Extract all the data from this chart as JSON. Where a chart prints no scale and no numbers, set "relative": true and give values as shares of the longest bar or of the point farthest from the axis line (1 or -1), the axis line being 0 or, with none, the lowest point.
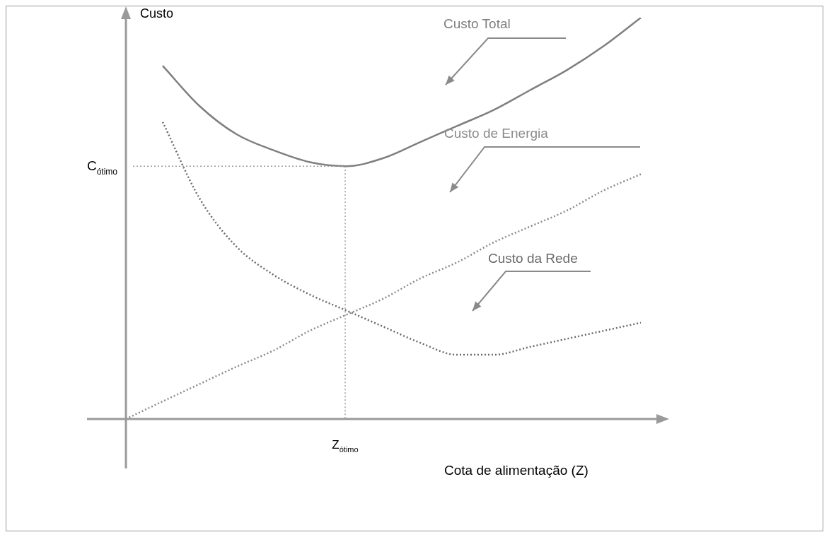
{
  "chart_data": {
    "type": "line",
    "relative": true,
    "xlabel": "Cota de alimentação (Z)",
    "ylabel": "Custo",
    "grid": false,
    "legend": false,
    "marker": "none",
    "categories": [
      null,
      null,
      null,
      null,
      null,
      null,
      null,
      null,
      null,
      null,
      null,
      null,
      null,
      null,
      null
    ],
    "annotations": [
      "Z$_{ótimo}$"
    ],
    "series": [
      {
        "name": "Custo Total",
        "color": "#7f7f7f",
        "line_style": "solid",
        "values": [
          null,
          0.88,
          0.78,
          0.71,
          0.67,
          0.64,
          0.63,
          0.65,
          0.69,
          0.73,
          0.77,
          0.82,
          0.87,
          0.93,
          1
        ]
      },
      {
        "name": "Custo de Energia",
        "color": "#8a8a8a",
        "line_style": "dotted",
        "values": [
          0,
          0.044,
          0.087,
          0.13,
          0.17,
          0.22,
          0.26,
          0.3,
          0.35,
          0.39,
          0.44,
          0.48,
          0.52,
          0.57,
          0.61
        ]
      },
      {
        "name": "Custo da Rede",
        "color": "#6a6a6a",
        "line_style": "dotted",
        "values": [
          null,
          0.74,
          0.55,
          0.43,
          0.36,
          0.31,
          0.27,
          0.23,
          0.19,
          0.16,
          0.16,
          0.18,
          0.2,
          0.22,
          0.24
        ]
      }
    ],
    "ref_lines": [
      {
        "axis": "y",
        "value": 0.63,
        "label": "C$_{ótimo}$",
        "line_style": "dotted",
        "color": "#9a9a9a"
      }
    ]
  }
}
